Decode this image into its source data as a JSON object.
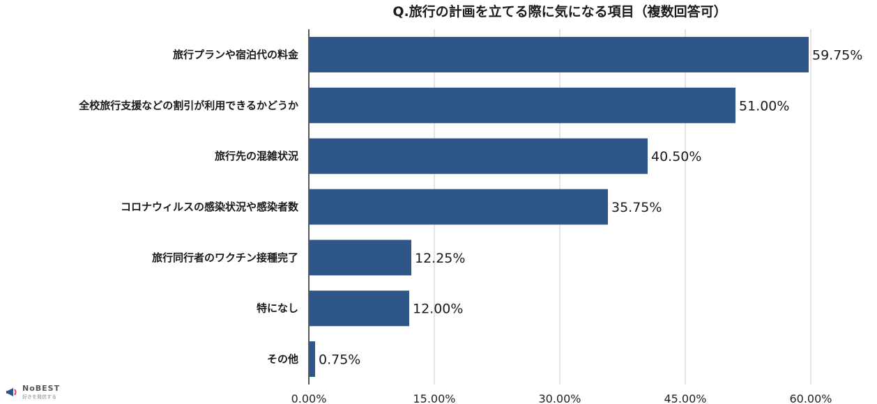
{
  "chart_data": {
    "type": "bar",
    "orientation": "horizontal",
    "title": "Q.旅行の計画を立てる際に気になる項目（複数回答可）",
    "categories": [
      "旅行プランや宿泊代の料金",
      "全校旅行支援などの割引が利用できるかどうか",
      "旅行先の混雑状況",
      "コロナウィルスの感染状況や感染者数",
      "旅行同行者のワクチン接種完了",
      "特になし",
      "その他"
    ],
    "values": [
      59.75,
      51.0,
      40.5,
      35.75,
      12.25,
      12.0,
      0.75
    ],
    "value_labels": [
      "59.75%",
      "51.00%",
      "40.50%",
      "35.75%",
      "12.25%",
      "12.00%",
      "0.75%"
    ],
    "xlim": [
      0,
      60
    ],
    "xticks": [
      0,
      15,
      30,
      45,
      60
    ],
    "xtick_labels": [
      "0.00%",
      "15.00%",
      "30.00%",
      "45.00%",
      "60.00%"
    ],
    "grid": true,
    "bar_color": "#2e5688"
  },
  "logo": {
    "brand": "NoBEST",
    "tagline": "好きを発信する",
    "accent_color": "#e2415a"
  }
}
